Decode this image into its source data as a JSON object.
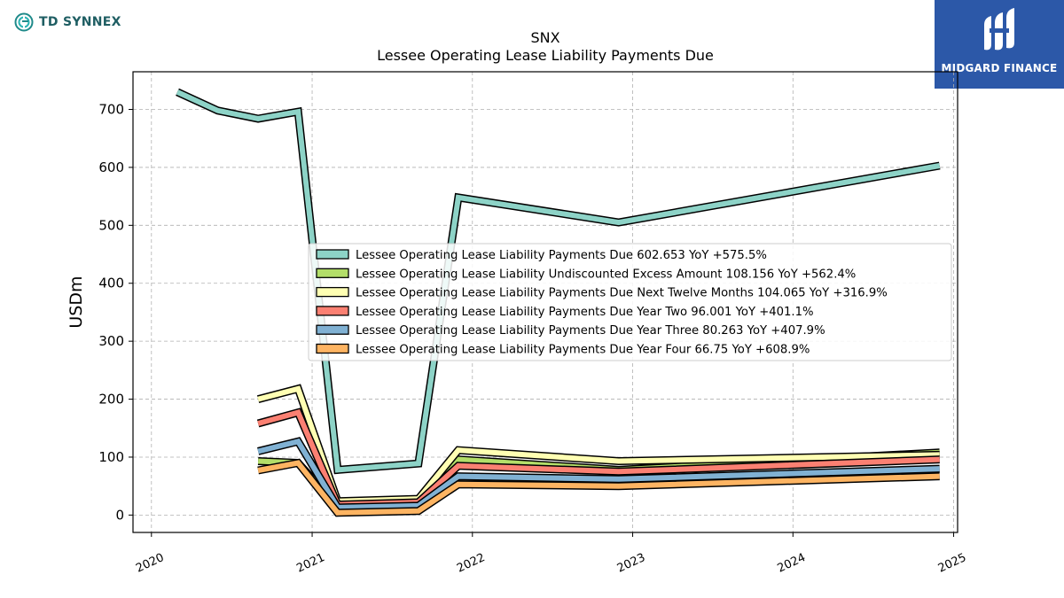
{
  "brand_left": {
    "text": "TD SYNNEX",
    "icon": "td-synnex-logo-icon",
    "color": "#1f8a8a"
  },
  "brand_right": {
    "text": "MIDGARD FINANCE",
    "icon": "midgard-logo-icon",
    "bg_color": "#2c58a8"
  },
  "chart_data": {
    "type": "line",
    "title": "SNX",
    "subtitle": "Lessee Operating Lease Liability Payments Due",
    "ylabel": "USDm",
    "xlabel": "",
    "xlim": [
      "2019-11-20",
      "2025-01-10"
    ],
    "ylim": [
      -30,
      765
    ],
    "x_ticks": [
      "2020",
      "2021",
      "2022",
      "2023",
      "2024",
      "2025"
    ],
    "x_tick_dates": [
      "2020-01-01",
      "2021-01-01",
      "2022-01-01",
      "2023-01-01",
      "2024-01-01",
      "2025-01-01"
    ],
    "y_ticks": [
      0,
      100,
      200,
      300,
      400,
      500,
      600,
      700
    ],
    "grid": true,
    "legend_position": "center-right",
    "series": [
      {
        "name": "Lessee Operating Lease Liability Payments Due",
        "legend_label": "Lessee Operating Lease Liability Payments Due  602.653 YoY +575.5%",
        "color": "#8dd3c7",
        "points": [
          [
            "2020-02-29",
            730
          ],
          [
            "2020-05-31",
            698
          ],
          [
            "2020-08-31",
            684
          ],
          [
            "2020-11-30",
            696
          ],
          [
            "2021-02-28",
            78
          ],
          [
            "2021-08-31",
            89
          ],
          [
            "2021-11-30",
            548
          ],
          [
            "2022-11-30",
            505
          ],
          [
            "2024-11-30",
            603
          ]
        ]
      },
      {
        "name": "Lessee Operating Lease Liability Undiscounted Excess Amount",
        "legend_label": "Lessee Operating Lease Liability Undiscounted Excess Amount  108.156 YoY +562.4%",
        "color": "#b3de69",
        "points": [
          [
            "2020-08-31",
            93
          ],
          [
            "2020-11-30",
            90
          ],
          [
            "2021-02-28",
            15
          ],
          [
            "2021-08-31",
            18
          ],
          [
            "2021-11-30",
            96
          ],
          [
            "2022-11-30",
            78
          ],
          [
            "2024-11-30",
            108
          ]
        ]
      },
      {
        "name": "Lessee Operating Lease Liability Payments Due Next Twelve Months",
        "legend_label": "Lessee Operating Lease Liability Payments Due Next Twelve Months  104.065 YoY +316.9%",
        "color": "#ffffb3",
        "points": [
          [
            "2020-08-31",
            200
          ],
          [
            "2020-11-30",
            218
          ],
          [
            "2021-02-28",
            24
          ],
          [
            "2021-08-31",
            28
          ],
          [
            "2021-11-30",
            112
          ],
          [
            "2022-11-30",
            93
          ],
          [
            "2024-11-30",
            104
          ]
        ]
      },
      {
        "name": "Lessee Operating Lease Liability Payments Due Year Two",
        "legend_label": "Lessee Operating Lease Liability Payments Due Year Two  96.001 YoY +401.1%",
        "color": "#fb8072",
        "points": [
          [
            "2020-08-31",
            158
          ],
          [
            "2020-11-30",
            177
          ],
          [
            "2021-02-28",
            18
          ],
          [
            "2021-08-31",
            22
          ],
          [
            "2021-11-30",
            85
          ],
          [
            "2022-11-30",
            75
          ],
          [
            "2024-11-30",
            96
          ]
        ]
      },
      {
        "name": "Lessee Operating Lease Liability Payments Due Year Three",
        "legend_label": "Lessee Operating Lease Liability Payments Due Year Three  80.263 YoY +407.9%",
        "color": "#80b1d3",
        "points": [
          [
            "2020-08-31",
            110
          ],
          [
            "2020-11-30",
            127
          ],
          [
            "2021-02-28",
            13
          ],
          [
            "2021-08-31",
            16
          ],
          [
            "2021-11-30",
            67
          ],
          [
            "2022-11-30",
            62
          ],
          [
            "2024-11-30",
            80
          ]
        ]
      },
      {
        "name": "Lessee Operating Lease Liability Payments Due Year Four",
        "legend_label": "Lessee Operating Lease Liability Payments Due Year Four  66.75 YoY +608.9%",
        "color": "#fdb462",
        "points": [
          [
            "2020-08-31",
            77
          ],
          [
            "2020-11-30",
            90
          ],
          [
            "2021-02-28",
            4
          ],
          [
            "2021-08-31",
            7
          ],
          [
            "2021-11-30",
            53
          ],
          [
            "2022-11-30",
            50
          ],
          [
            "2024-11-30",
            67
          ]
        ]
      }
    ]
  }
}
